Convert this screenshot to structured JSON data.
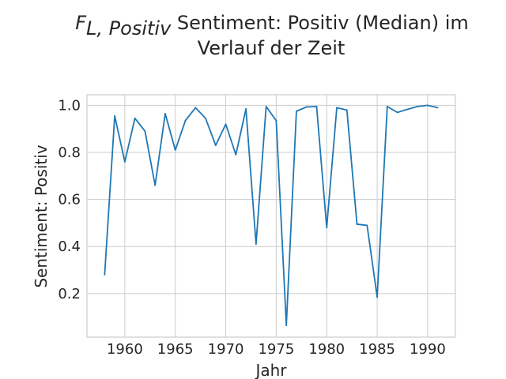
{
  "chart_data": {
    "type": "line",
    "title_math_base": "F",
    "title_math_sub": "L, Positiv",
    "title_line1_rest": " Sentiment: Positiv (Median) im",
    "title_line2": "Verlauf der Zeit",
    "xlabel": "Jahr",
    "ylabel": "Sentiment: Positiv",
    "xlim": [
      1956.25,
      1992.75
    ],
    "ylim": [
      0.015,
      1.045
    ],
    "xticks": [
      1960,
      1965,
      1970,
      1975,
      1980,
      1985,
      1990
    ],
    "xtick_labels": [
      "1960",
      "1965",
      "1970",
      "1975",
      "1980",
      "1985",
      "1990"
    ],
    "yticks": [
      0.2,
      0.4,
      0.6,
      0.8,
      1.0
    ],
    "ytick_labels": [
      "0.2",
      "0.4",
      "0.6",
      "0.8",
      "1.0"
    ],
    "grid": true,
    "series": [
      {
        "color": "#1f77b4",
        "x": [
          1958,
          1959,
          1960,
          1961,
          1962,
          1963,
          1964,
          1965,
          1966,
          1967,
          1968,
          1969,
          1970,
          1971,
          1972,
          1973,
          1974,
          1975,
          1976,
          1977,
          1978,
          1979,
          1980,
          1981,
          1982,
          1983,
          1984,
          1985,
          1986,
          1987,
          1988,
          1989,
          1990,
          1991
        ],
        "y": [
          0.28,
          0.955,
          0.76,
          0.945,
          0.89,
          0.66,
          0.965,
          0.81,
          0.935,
          0.99,
          0.945,
          0.83,
          0.92,
          0.79,
          0.985,
          0.41,
          0.995,
          0.935,
          0.065,
          0.975,
          0.993,
          0.995,
          0.48,
          0.99,
          0.98,
          0.495,
          0.49,
          0.185,
          0.995,
          0.97,
          0.983,
          0.995,
          1.0,
          0.99
        ]
      }
    ]
  }
}
